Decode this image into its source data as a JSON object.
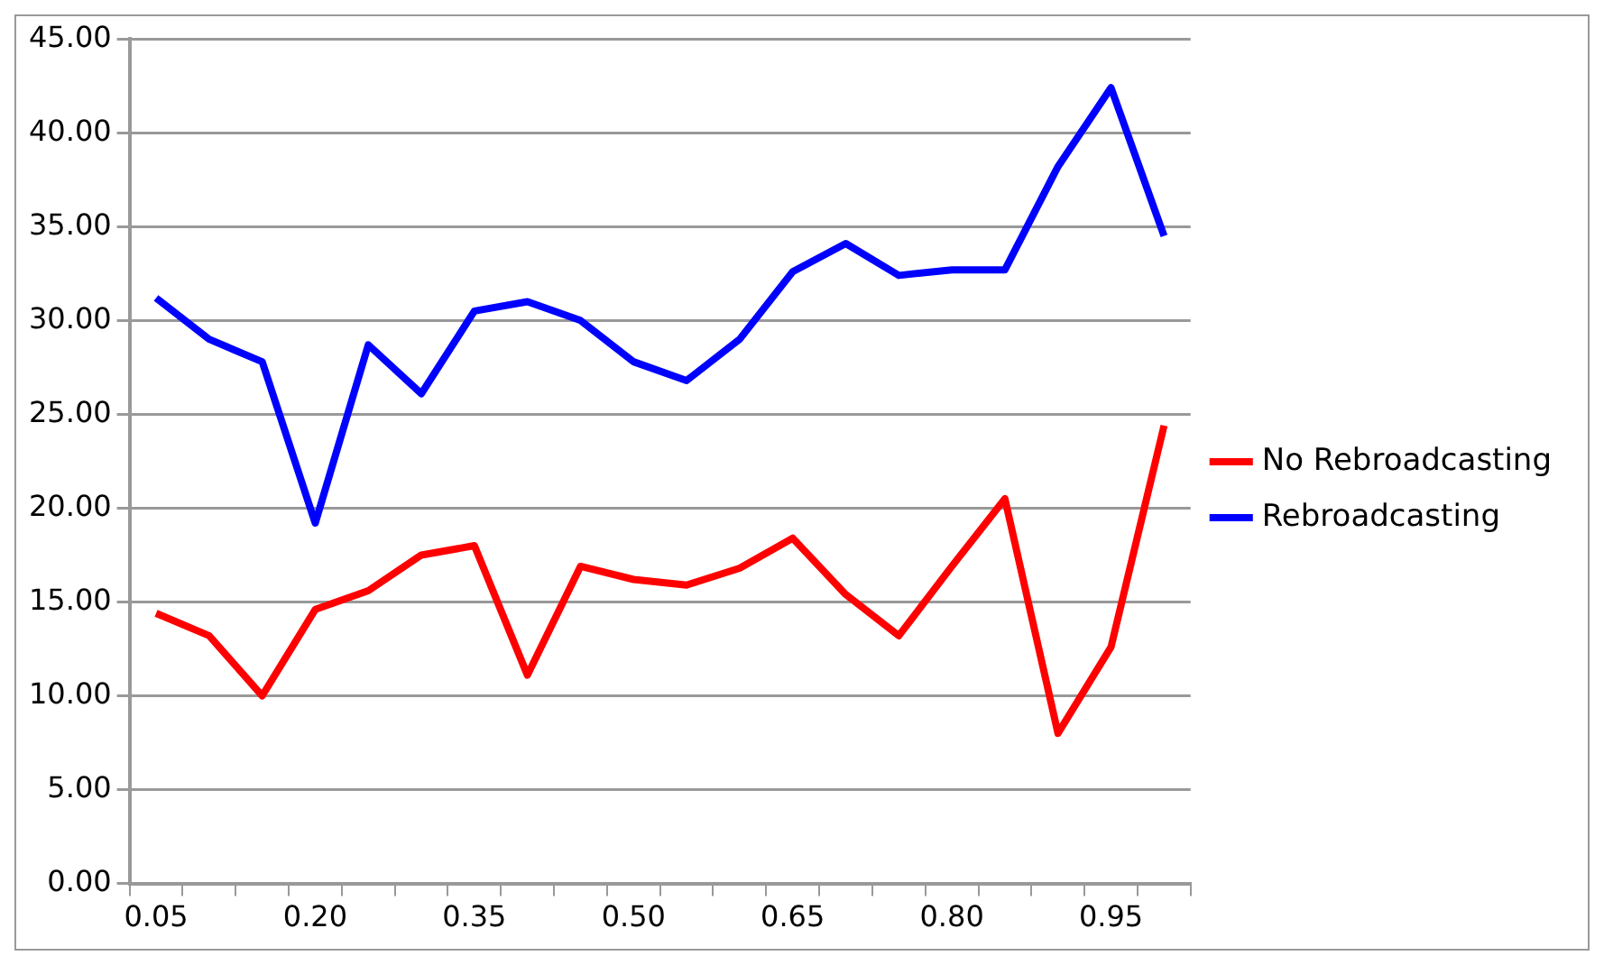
{
  "chart_data": {
    "type": "line",
    "categories": [
      "0.05",
      null,
      null,
      "0.20",
      null,
      null,
      "0.35",
      null,
      null,
      "0.50",
      null,
      null,
      "0.65",
      null,
      null,
      "0.80",
      null,
      null,
      "0.95",
      null
    ],
    "series": [
      {
        "name": "No Rebroadcasting",
        "color": "#ff0000",
        "values": [
          14.4,
          13.2,
          10.0,
          14.6,
          15.6,
          17.5,
          18.0,
          11.1,
          16.9,
          16.2,
          15.9,
          16.8,
          18.4,
          15.4,
          13.2,
          16.9,
          20.5,
          8.0,
          12.6,
          24.4
        ]
      },
      {
        "name": "Rebroadcasting",
        "color": "#0000ff",
        "values": [
          31.2,
          29.0,
          27.8,
          19.2,
          28.7,
          26.1,
          30.5,
          31.0,
          30.0,
          27.8,
          26.8,
          29.0,
          32.6,
          34.1,
          32.4,
          32.7,
          32.7,
          38.2,
          42.4,
          34.5
        ]
      }
    ],
    "ylim": [
      0,
      45
    ],
    "yticks": [
      {
        "value": 0,
        "label": "0.00"
      },
      {
        "value": 5,
        "label": "5.00"
      },
      {
        "value": 10,
        "label": "10.00"
      },
      {
        "value": 15,
        "label": "15.00"
      },
      {
        "value": 20,
        "label": "20.00"
      },
      {
        "value": 25,
        "label": "25.00"
      },
      {
        "value": 30,
        "label": "30.00"
      },
      {
        "value": 35,
        "label": "35.00"
      },
      {
        "value": 40,
        "label": "40.00"
      },
      {
        "value": 45,
        "label": "45.00"
      }
    ],
    "grid": "y",
    "legend": "right",
    "marker": "none",
    "line_style": "solid"
  }
}
